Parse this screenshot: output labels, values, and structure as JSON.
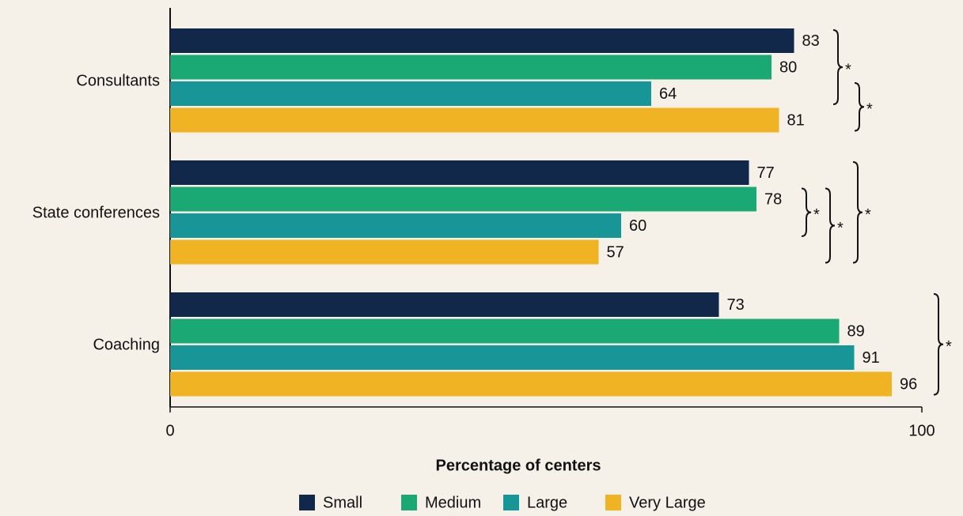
{
  "chart_data": {
    "type": "bar",
    "orientation": "horizontal",
    "categories": [
      "Consultants",
      "State conferences",
      "Coaching"
    ],
    "series": [
      {
        "name": "Small",
        "color": "#12284b",
        "values": [
          83,
          77,
          73
        ]
      },
      {
        "name": "Medium",
        "color": "#1aa874",
        "values": [
          80,
          78,
          89
        ]
      },
      {
        "name": "Large",
        "color": "#189596",
        "values": [
          64,
          60,
          91
        ]
      },
      {
        "name": "Very Large",
        "color": "#f0b323",
        "values": [
          81,
          57,
          96
        ]
      }
    ],
    "xlabel": "Percentage of centers",
    "xlim": [
      0,
      100
    ],
    "xticks": [
      0,
      100
    ],
    "grid": false,
    "legend": "bottom",
    "annotations": [
      "*",
      "*",
      "*",
      "*",
      "*",
      "*"
    ]
  }
}
